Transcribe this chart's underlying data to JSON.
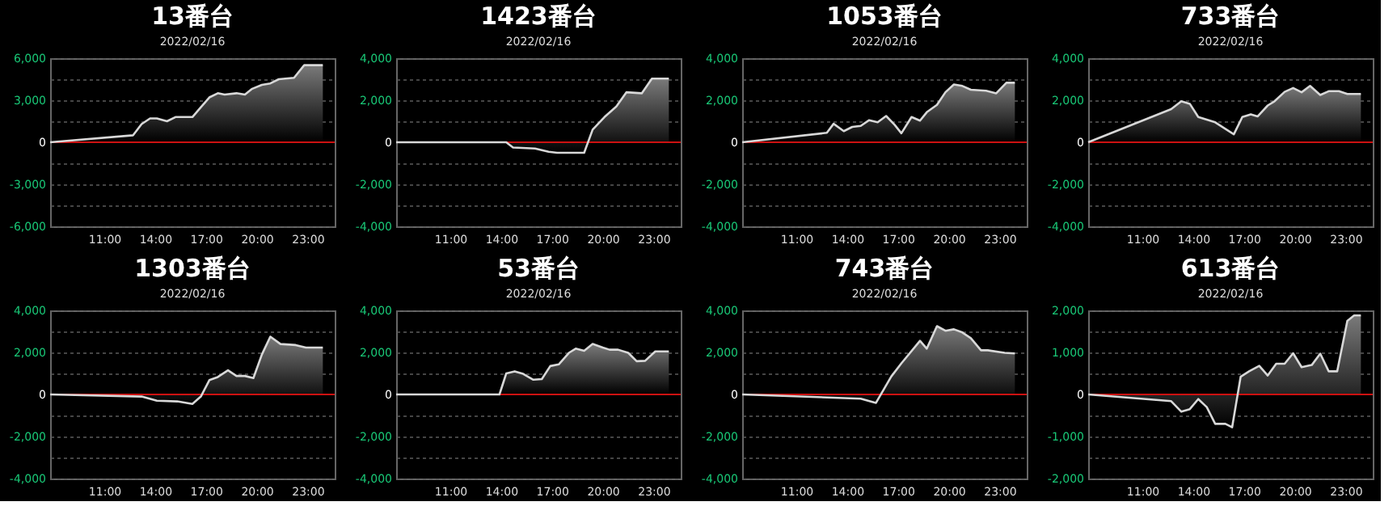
{
  "chart_data": [
    {
      "type": "area",
      "title": "13番台",
      "subtitle": "2022/02/16",
      "color": "#d8d8d8",
      "grid": "y",
      "xlim": [
        7.8,
        24.6
      ],
      "ylim": [
        -6000,
        6000
      ],
      "xticks": [
        {
          "value": 11,
          "label": "11:00"
        },
        {
          "value": 14,
          "label": "14:00"
        },
        {
          "value": 17,
          "label": "17:00"
        },
        {
          "value": 20,
          "label": "20:00"
        },
        {
          "value": 23,
          "label": "23:00"
        }
      ],
      "yticks": [
        {
          "value": 6000,
          "label": "6,000"
        },
        {
          "value": 4500,
          "label": null
        },
        {
          "value": 3000,
          "label": "3,000"
        },
        {
          "value": 1500,
          "label": null
        },
        0,
        {
          "value": -1500,
          "label": null
        },
        {
          "value": -3000,
          "label": "-3,000"
        },
        {
          "value": -4500,
          "label": null
        },
        {
          "value": -6000,
          "label": "-6,000"
        }
      ],
      "ref_lines": [
        {
          "axis": "y",
          "value": 0,
          "color": "#cc1111"
        }
      ],
      "x": [
        7.8,
        12.7,
        13.2,
        13.7,
        14.1,
        14.7,
        15.2,
        16.2,
        16.7,
        17.2,
        17.7,
        18.1,
        18.8,
        19.3,
        19.7,
        20.3,
        20.8,
        21.3,
        22.2,
        22.8,
        23.9
      ],
      "values": [
        0,
        500,
        1300,
        1700,
        1700,
        1500,
        1800,
        1800,
        2500,
        3200,
        3500,
        3400,
        3500,
        3400,
        3800,
        4100,
        4200,
        4500,
        4600,
        5500,
        5500
      ]
    },
    {
      "type": "area",
      "title": "1423番台",
      "subtitle": "2022/02/16",
      "color": "#d8d8d8",
      "grid": "y",
      "xlim": [
        7.8,
        24.6
      ],
      "ylim": [
        -4000,
        4000
      ],
      "xticks": [
        {
          "value": 11,
          "label": "11:00"
        },
        {
          "value": 14,
          "label": "14:00"
        },
        {
          "value": 17,
          "label": "17:00"
        },
        {
          "value": 20,
          "label": "20:00"
        },
        {
          "value": 23,
          "label": "23:00"
        }
      ],
      "yticks": [
        {
          "value": 4000,
          "label": "4,000"
        },
        {
          "value": 3000,
          "label": null
        },
        {
          "value": 2000,
          "label": "2,000"
        },
        {
          "value": 1000,
          "label": null
        },
        0,
        {
          "value": -1000,
          "label": null
        },
        {
          "value": -2000,
          "label": "-2,000"
        },
        {
          "value": -3000,
          "label": null
        },
        {
          "value": -4000,
          "label": "-4,000"
        }
      ],
      "ref_lines": [
        {
          "axis": "y",
          "value": 0,
          "color": "#cc1111"
        }
      ],
      "x": [
        7.8,
        14.3,
        14.7,
        16.0,
        16.8,
        17.3,
        18.9,
        19.4,
        20.1,
        20.8,
        21.4,
        22.3,
        22.9,
        23.9
      ],
      "values": [
        0,
        0,
        -250,
        -300,
        -450,
        -500,
        -500,
        600,
        1200,
        1700,
        2380,
        2330,
        3030,
        3030
      ]
    },
    {
      "type": "area",
      "title": "1053番台",
      "subtitle": "2022/02/16",
      "color": "#d8d8d8",
      "grid": "y",
      "xlim": [
        7.8,
        24.6
      ],
      "ylim": [
        -4000,
        4000
      ],
      "xticks": [
        {
          "value": 11,
          "label": "11:00"
        },
        {
          "value": 14,
          "label": "14:00"
        },
        {
          "value": 17,
          "label": "17:00"
        },
        {
          "value": 20,
          "label": "20:00"
        },
        {
          "value": 23,
          "label": "23:00"
        }
      ],
      "yticks": [
        {
          "value": 4000,
          "label": "4,000"
        },
        {
          "value": 3000,
          "label": null
        },
        {
          "value": 2000,
          "label": "2,000"
        },
        {
          "value": 1000,
          "label": null
        },
        0,
        {
          "value": -1000,
          "label": null
        },
        {
          "value": -2000,
          "label": "-2,000"
        },
        {
          "value": -3000,
          "label": null
        },
        {
          "value": -4000,
          "label": "-4,000"
        }
      ],
      "ref_lines": [
        {
          "axis": "y",
          "value": 0,
          "color": "#cc1111"
        }
      ],
      "x": [
        7.8,
        12.8,
        13.2,
        13.8,
        14.3,
        14.8,
        15.3,
        15.8,
        16.3,
        16.8,
        17.2,
        17.8,
        18.3,
        18.7,
        19.3,
        19.8,
        20.3,
        20.8,
        21.3,
        22.2,
        22.8,
        23.4,
        23.9
      ],
      "values": [
        0,
        450,
        880,
        530,
        730,
        780,
        1050,
        950,
        1250,
        830,
        430,
        1200,
        1030,
        1430,
        1780,
        2380,
        2750,
        2680,
        2500,
        2450,
        2330,
        2830,
        2830
      ]
    },
    {
      "type": "area",
      "title": "733番台",
      "subtitle": "2022/02/16",
      "color": "#d8d8d8",
      "grid": "y",
      "xlim": [
        7.8,
        24.6
      ],
      "ylim": [
        -4000,
        4000
      ],
      "xticks": [
        {
          "value": 11,
          "label": "11:00"
        },
        {
          "value": 14,
          "label": "14:00"
        },
        {
          "value": 17,
          "label": "17:00"
        },
        {
          "value": 20,
          "label": "20:00"
        },
        {
          "value": 23,
          "label": "23:00"
        }
      ],
      "yticks": [
        {
          "value": 4000,
          "label": "4,000"
        },
        {
          "value": 3000,
          "label": null
        },
        {
          "value": 2000,
          "label": "2,000"
        },
        {
          "value": 1000,
          "label": null
        },
        0,
        {
          "value": -1000,
          "label": null
        },
        {
          "value": -2000,
          "label": "-2,000"
        },
        {
          "value": -3000,
          "label": null
        },
        {
          "value": -4000,
          "label": "-4,000"
        }
      ],
      "ref_lines": [
        {
          "axis": "y",
          "value": 0,
          "color": "#cc1111"
        }
      ],
      "x": [
        7.8,
        12.7,
        13.3,
        13.8,
        14.3,
        15.3,
        16.4,
        16.9,
        17.4,
        17.8,
        18.4,
        18.8,
        19.4,
        19.9,
        20.4,
        20.9,
        21.5,
        22.0,
        22.6,
        23.1,
        23.9
      ],
      "values": [
        0,
        1580,
        1950,
        1830,
        1200,
        950,
        380,
        1200,
        1330,
        1230,
        1750,
        1950,
        2400,
        2580,
        2380,
        2680,
        2250,
        2430,
        2430,
        2300,
        2300
      ]
    },
    {
      "type": "area",
      "title": "1303番台",
      "subtitle": "2022/02/16",
      "color": "#d8d8d8",
      "grid": "y",
      "xlim": [
        7.8,
        24.6
      ],
      "ylim": [
        -4000,
        4000
      ],
      "xticks": [
        {
          "value": 11,
          "label": "11:00"
        },
        {
          "value": 14,
          "label": "14:00"
        },
        {
          "value": 17,
          "label": "17:00"
        },
        {
          "value": 20,
          "label": "20:00"
        },
        {
          "value": 23,
          "label": "23:00"
        }
      ],
      "yticks": [
        {
          "value": 4000,
          "label": "4,000"
        },
        {
          "value": 3000,
          "label": null
        },
        {
          "value": 2000,
          "label": "2,000"
        },
        {
          "value": 1000,
          "label": null
        },
        0,
        {
          "value": -1000,
          "label": null
        },
        {
          "value": -2000,
          "label": "-2,000"
        },
        {
          "value": -3000,
          "label": null
        },
        {
          "value": -4000,
          "label": "-4,000"
        }
      ],
      "ref_lines": [
        {
          "axis": "y",
          "value": 0,
          "color": "#cc1111"
        }
      ],
      "x": [
        7.8,
        13.2,
        14.1,
        15.3,
        16.2,
        16.7,
        17.2,
        17.7,
        18.3,
        18.8,
        19.3,
        19.8,
        20.3,
        20.8,
        21.4,
        22.3,
        22.9,
        23.9
      ],
      "values": [
        0,
        -100,
        -300,
        -330,
        -450,
        -100,
        680,
        830,
        1150,
        880,
        880,
        780,
        1900,
        2750,
        2400,
        2350,
        2230,
        2230
      ]
    },
    {
      "type": "area",
      "title": "53番台",
      "subtitle": "2022/02/16",
      "color": "#d8d8d8",
      "grid": "y",
      "xlim": [
        7.8,
        24.6
      ],
      "ylim": [
        -4000,
        4000
      ],
      "xticks": [
        {
          "value": 11,
          "label": "11:00"
        },
        {
          "value": 14,
          "label": "14:00"
        },
        {
          "value": 17,
          "label": "17:00"
        },
        {
          "value": 20,
          "label": "20:00"
        },
        {
          "value": 23,
          "label": "23:00"
        }
      ],
      "yticks": [
        {
          "value": 4000,
          "label": "4,000"
        },
        {
          "value": 3000,
          "label": null
        },
        {
          "value": 2000,
          "label": "2,000"
        },
        {
          "value": 1000,
          "label": null
        },
        0,
        {
          "value": -1000,
          "label": null
        },
        {
          "value": -2000,
          "label": "-2,000"
        },
        {
          "value": -3000,
          "label": null
        },
        {
          "value": -4000,
          "label": "-4,000"
        }
      ],
      "ref_lines": [
        {
          "axis": "y",
          "value": 0,
          "color": "#cc1111"
        }
      ],
      "x": [
        7.8,
        13.9,
        14.3,
        14.8,
        15.3,
        15.9,
        16.4,
        16.9,
        17.4,
        18.0,
        18.4,
        18.9,
        19.4,
        20.0,
        20.4,
        20.9,
        21.5,
        22.0,
        22.5,
        23.1,
        23.9
      ],
      "values": [
        0,
        0,
        1000,
        1100,
        980,
        700,
        730,
        1350,
        1430,
        1980,
        2180,
        2080,
        2400,
        2230,
        2130,
        2130,
        1980,
        1580,
        1600,
        2050,
        2050
      ]
    },
    {
      "type": "area",
      "title": "743番台",
      "subtitle": "2022/02/16",
      "color": "#d8d8d8",
      "grid": "y",
      "xlim": [
        7.8,
        24.6
      ],
      "ylim": [
        -4000,
        4000
      ],
      "xticks": [
        {
          "value": 11,
          "label": "11:00"
        },
        {
          "value": 14,
          "label": "14:00"
        },
        {
          "value": 17,
          "label": "17:00"
        },
        {
          "value": 20,
          "label": "20:00"
        },
        {
          "value": 23,
          "label": "23:00"
        }
      ],
      "yticks": [
        {
          "value": 4000,
          "label": "4,000"
        },
        {
          "value": 3000,
          "label": null
        },
        {
          "value": 2000,
          "label": "2,000"
        },
        {
          "value": 1000,
          "label": null
        },
        0,
        {
          "value": -1000,
          "label": null
        },
        {
          "value": -2000,
          "label": "-2,000"
        },
        {
          "value": -3000,
          "label": null
        },
        {
          "value": -4000,
          "label": "-4,000"
        }
      ],
      "ref_lines": [
        {
          "axis": "y",
          "value": 0,
          "color": "#cc1111"
        }
      ],
      "x": [
        7.8,
        14.8,
        15.7,
        16.6,
        17.2,
        18.3,
        18.7,
        19.3,
        19.8,
        20.3,
        20.8,
        21.3,
        21.9,
        22.3,
        23.3,
        23.9
      ],
      "values": [
        0,
        -200,
        -400,
        850,
        1480,
        2550,
        2180,
        3250,
        3030,
        3100,
        2950,
        2680,
        2100,
        2100,
        1980,
        1950
      ]
    },
    {
      "type": "area",
      "title": "613番台",
      "subtitle": "2022/02/16",
      "color": "#d8d8d8",
      "grid": "y",
      "xlim": [
        7.8,
        24.6
      ],
      "ylim": [
        -2000,
        2000
      ],
      "xticks": [
        {
          "value": 11,
          "label": "11:00"
        },
        {
          "value": 14,
          "label": "14:00"
        },
        {
          "value": 17,
          "label": "17:00"
        },
        {
          "value": 20,
          "label": "20:00"
        },
        {
          "value": 23,
          "label": "23:00"
        }
      ],
      "yticks": [
        {
          "value": 2000,
          "label": "2,000"
        },
        {
          "value": 1500,
          "label": null
        },
        {
          "value": 1000,
          "label": "1,000"
        },
        {
          "value": 500,
          "label": null
        },
        0,
        {
          "value": -500,
          "label": null
        },
        {
          "value": -1000,
          "label": "-1,000"
        },
        {
          "value": -1500,
          "label": null
        },
        {
          "value": -2000,
          "label": "-2,000"
        }
      ],
      "ref_lines": [
        {
          "axis": "y",
          "value": 0,
          "color": "#cc1111"
        }
      ],
      "x": [
        7.8,
        12.7,
        13.3,
        13.8,
        14.3,
        14.8,
        15.3,
        15.9,
        16.3,
        16.8,
        17.3,
        17.9,
        18.4,
        18.9,
        19.4,
        19.9,
        20.4,
        21.0,
        21.5,
        22.0,
        22.5,
        23.1,
        23.5,
        23.9
      ],
      "values": [
        0,
        -160,
        -410,
        -350,
        -110,
        -300,
        -700,
        -700,
        -780,
        420,
        550,
        680,
        450,
        730,
        730,
        980,
        650,
        700,
        970,
        550,
        550,
        1750,
        1880,
        1880
      ]
    }
  ]
}
